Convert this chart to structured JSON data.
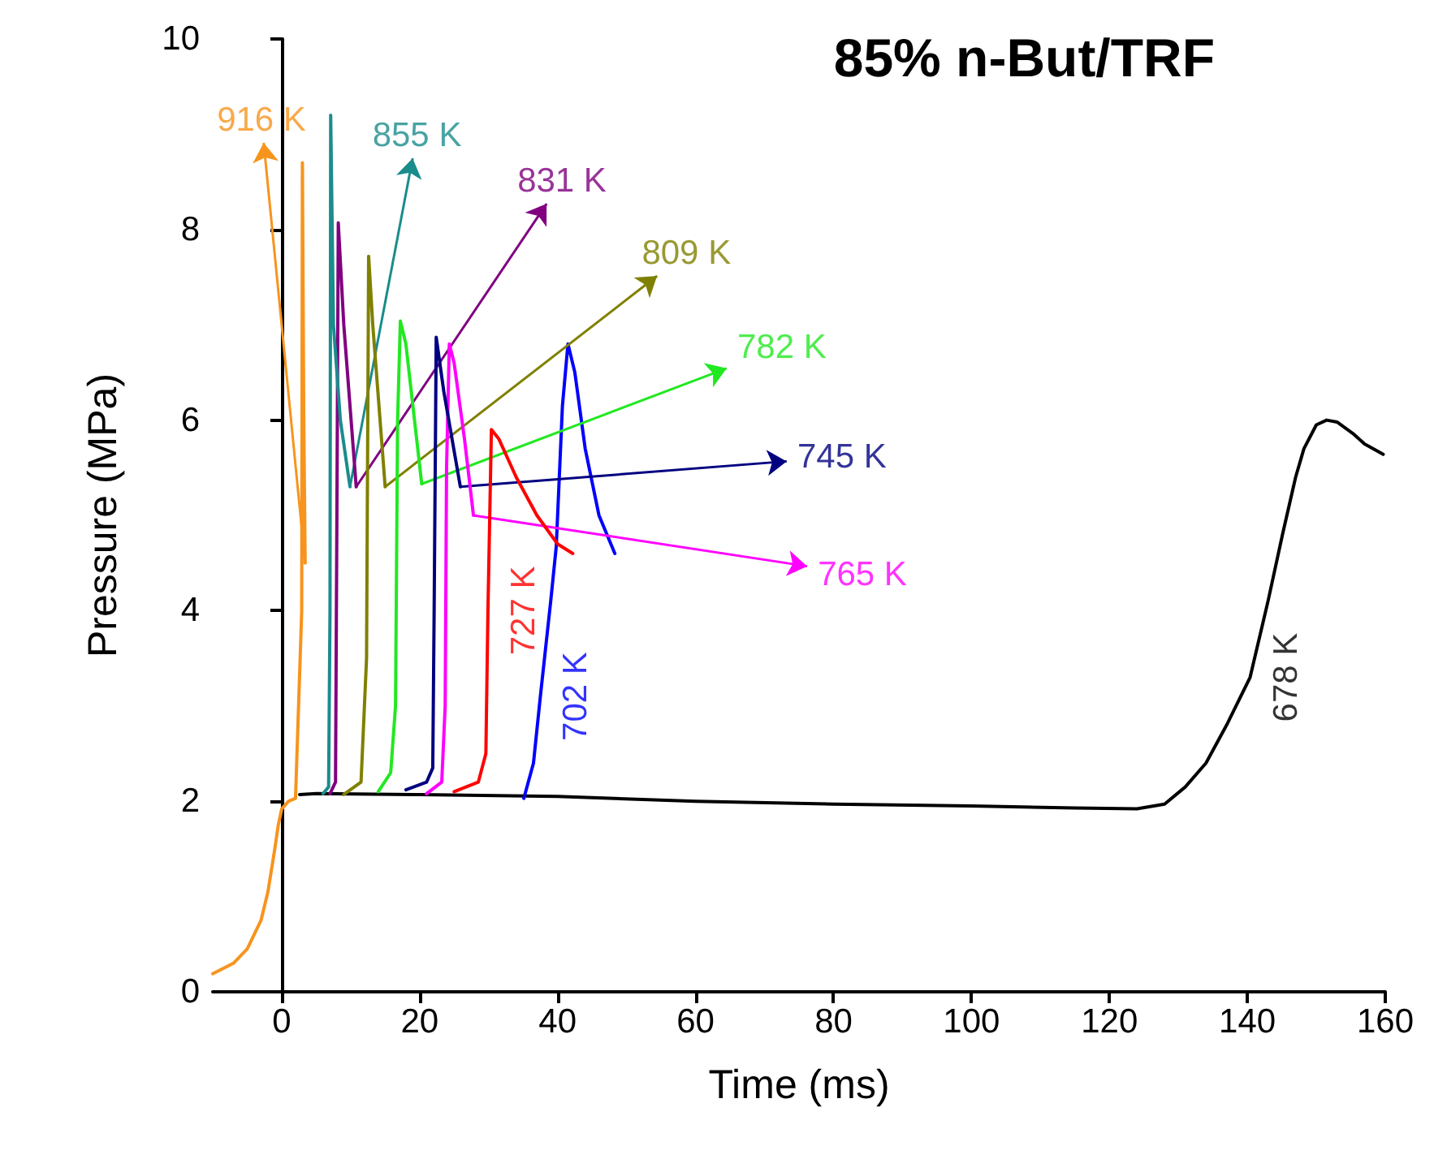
{
  "chart_data": {
    "type": "line",
    "title": "85% n-But/TRF",
    "xlabel": "Time (ms)",
    "ylabel": "Pressure (MPa)",
    "xlim": [
      -10,
      160
    ],
    "xticks": [
      0,
      20,
      40,
      60,
      80,
      100,
      120,
      140,
      160
    ],
    "ylim": [
      0,
      10
    ],
    "yticks": [
      0,
      2,
      4,
      6,
      8,
      10
    ],
    "grid": false,
    "marker": "none",
    "line_style": "solid",
    "series": [
      {
        "color": "#f7941d",
        "x": [
          -10,
          -7,
          -5,
          -3,
          -2,
          -1,
          -0.5,
          0,
          1,
          2,
          2.9,
          3.0,
          3.2,
          3.4
        ],
        "values": [
          0.19,
          0.3,
          0.45,
          0.75,
          1.05,
          1.5,
          1.75,
          1.92,
          2.0,
          2.03,
          4,
          8.7,
          6,
          4.5
        ]
      },
      {
        "color": "#1a8c8c",
        "x": [
          6,
          6.8,
          7.0,
          7.1,
          7.5,
          8.5,
          9.9
        ],
        "values": [
          2.08,
          2.15,
          4,
          9.2,
          7,
          6,
          5.3
        ]
      },
      {
        "color": "#800080",
        "x": [
          7,
          7.8,
          8.0,
          8.2,
          9,
          10.8
        ],
        "values": [
          2.08,
          2.2,
          5,
          8.07,
          7,
          5.3
        ]
      },
      {
        "color": "#808000",
        "x": [
          9,
          11.5,
          12.3,
          12.6,
          13.2,
          15
        ],
        "values": [
          2.07,
          2.2,
          3.5,
          7.72,
          7,
          5.3
        ]
      },
      {
        "color": "#22e822",
        "x": [
          14,
          15.8,
          16.5,
          16.8,
          17.2,
          18,
          20.3
        ],
        "values": [
          2.1,
          2.3,
          3,
          6,
          7.04,
          6.8,
          5.33
        ]
      },
      {
        "color": "#000080",
        "x": [
          18,
          21,
          21.9,
          22.1,
          22.4,
          23.5,
          25.9
        ],
        "values": [
          2.12,
          2.2,
          2.35,
          4,
          6.87,
          6.3,
          5.3
        ]
      },
      {
        "color": "#ff00ff",
        "x": [
          21,
          23.2,
          23.7,
          23.9,
          24.3,
          25,
          26.5,
          27.8
        ],
        "values": [
          2.08,
          2.2,
          3,
          5.5,
          6.8,
          6.6,
          5.8,
          5.0
        ]
      },
      {
        "color": "#ff0000",
        "x": [
          25,
          28.5,
          29.6,
          29.9,
          30.4,
          31.5,
          34,
          37,
          40,
          42.2
        ],
        "values": [
          2.1,
          2.2,
          2.5,
          4,
          5.9,
          5.8,
          5.4,
          5.0,
          4.7,
          4.6
        ]
      },
      {
        "color": "#0000ff",
        "x": [
          35.1,
          36.5,
          37.5,
          39,
          39.8,
          40.7,
          41.5,
          42.5,
          44,
          46,
          48.3
        ],
        "values": [
          2.03,
          2.4,
          3.1,
          4.1,
          4.67,
          6.15,
          6.8,
          6.5,
          5.7,
          5.0,
          4.6
        ]
      },
      {
        "color": "#000000",
        "x": [
          2.6,
          5,
          20,
          40,
          60,
          80,
          100,
          115,
          124,
          128,
          131,
          134,
          137,
          140.4,
          143,
          145.1,
          147,
          148.2,
          150,
          151.5,
          153,
          155.3,
          157,
          159.7
        ],
        "values": [
          2.07,
          2.08,
          2.07,
          2.05,
          2.0,
          1.97,
          1.95,
          1.93,
          1.92,
          1.97,
          2.15,
          2.4,
          2.8,
          3.3,
          4.1,
          4.8,
          5.4,
          5.7,
          5.95,
          6.0,
          5.98,
          5.86,
          5.75,
          5.64
        ]
      }
    ],
    "annotations": [
      {
        "text": "916 K",
        "x": 3.4,
        "y": 4.5
      },
      {
        "text": "855 K",
        "x": 9.9,
        "y": 5.3
      },
      {
        "text": "831 K",
        "x": 10.8,
        "y": 5.3
      },
      {
        "text": "809 K",
        "x": 15,
        "y": 5.3
      },
      {
        "text": "782 K",
        "x": 20.3,
        "y": 5.33
      },
      {
        "text": "745 K",
        "x": 25.9,
        "y": 5.3
      },
      {
        "text": "765 K",
        "x": 27.8,
        "y": 5.0
      },
      {
        "text": "727 K",
        "x": 29.9,
        "y": 4
      },
      {
        "text": "702 K",
        "x": 37.5,
        "y": 3.1
      },
      {
        "text": "678 K",
        "x": 140.4,
        "y": 3.3
      }
    ]
  }
}
